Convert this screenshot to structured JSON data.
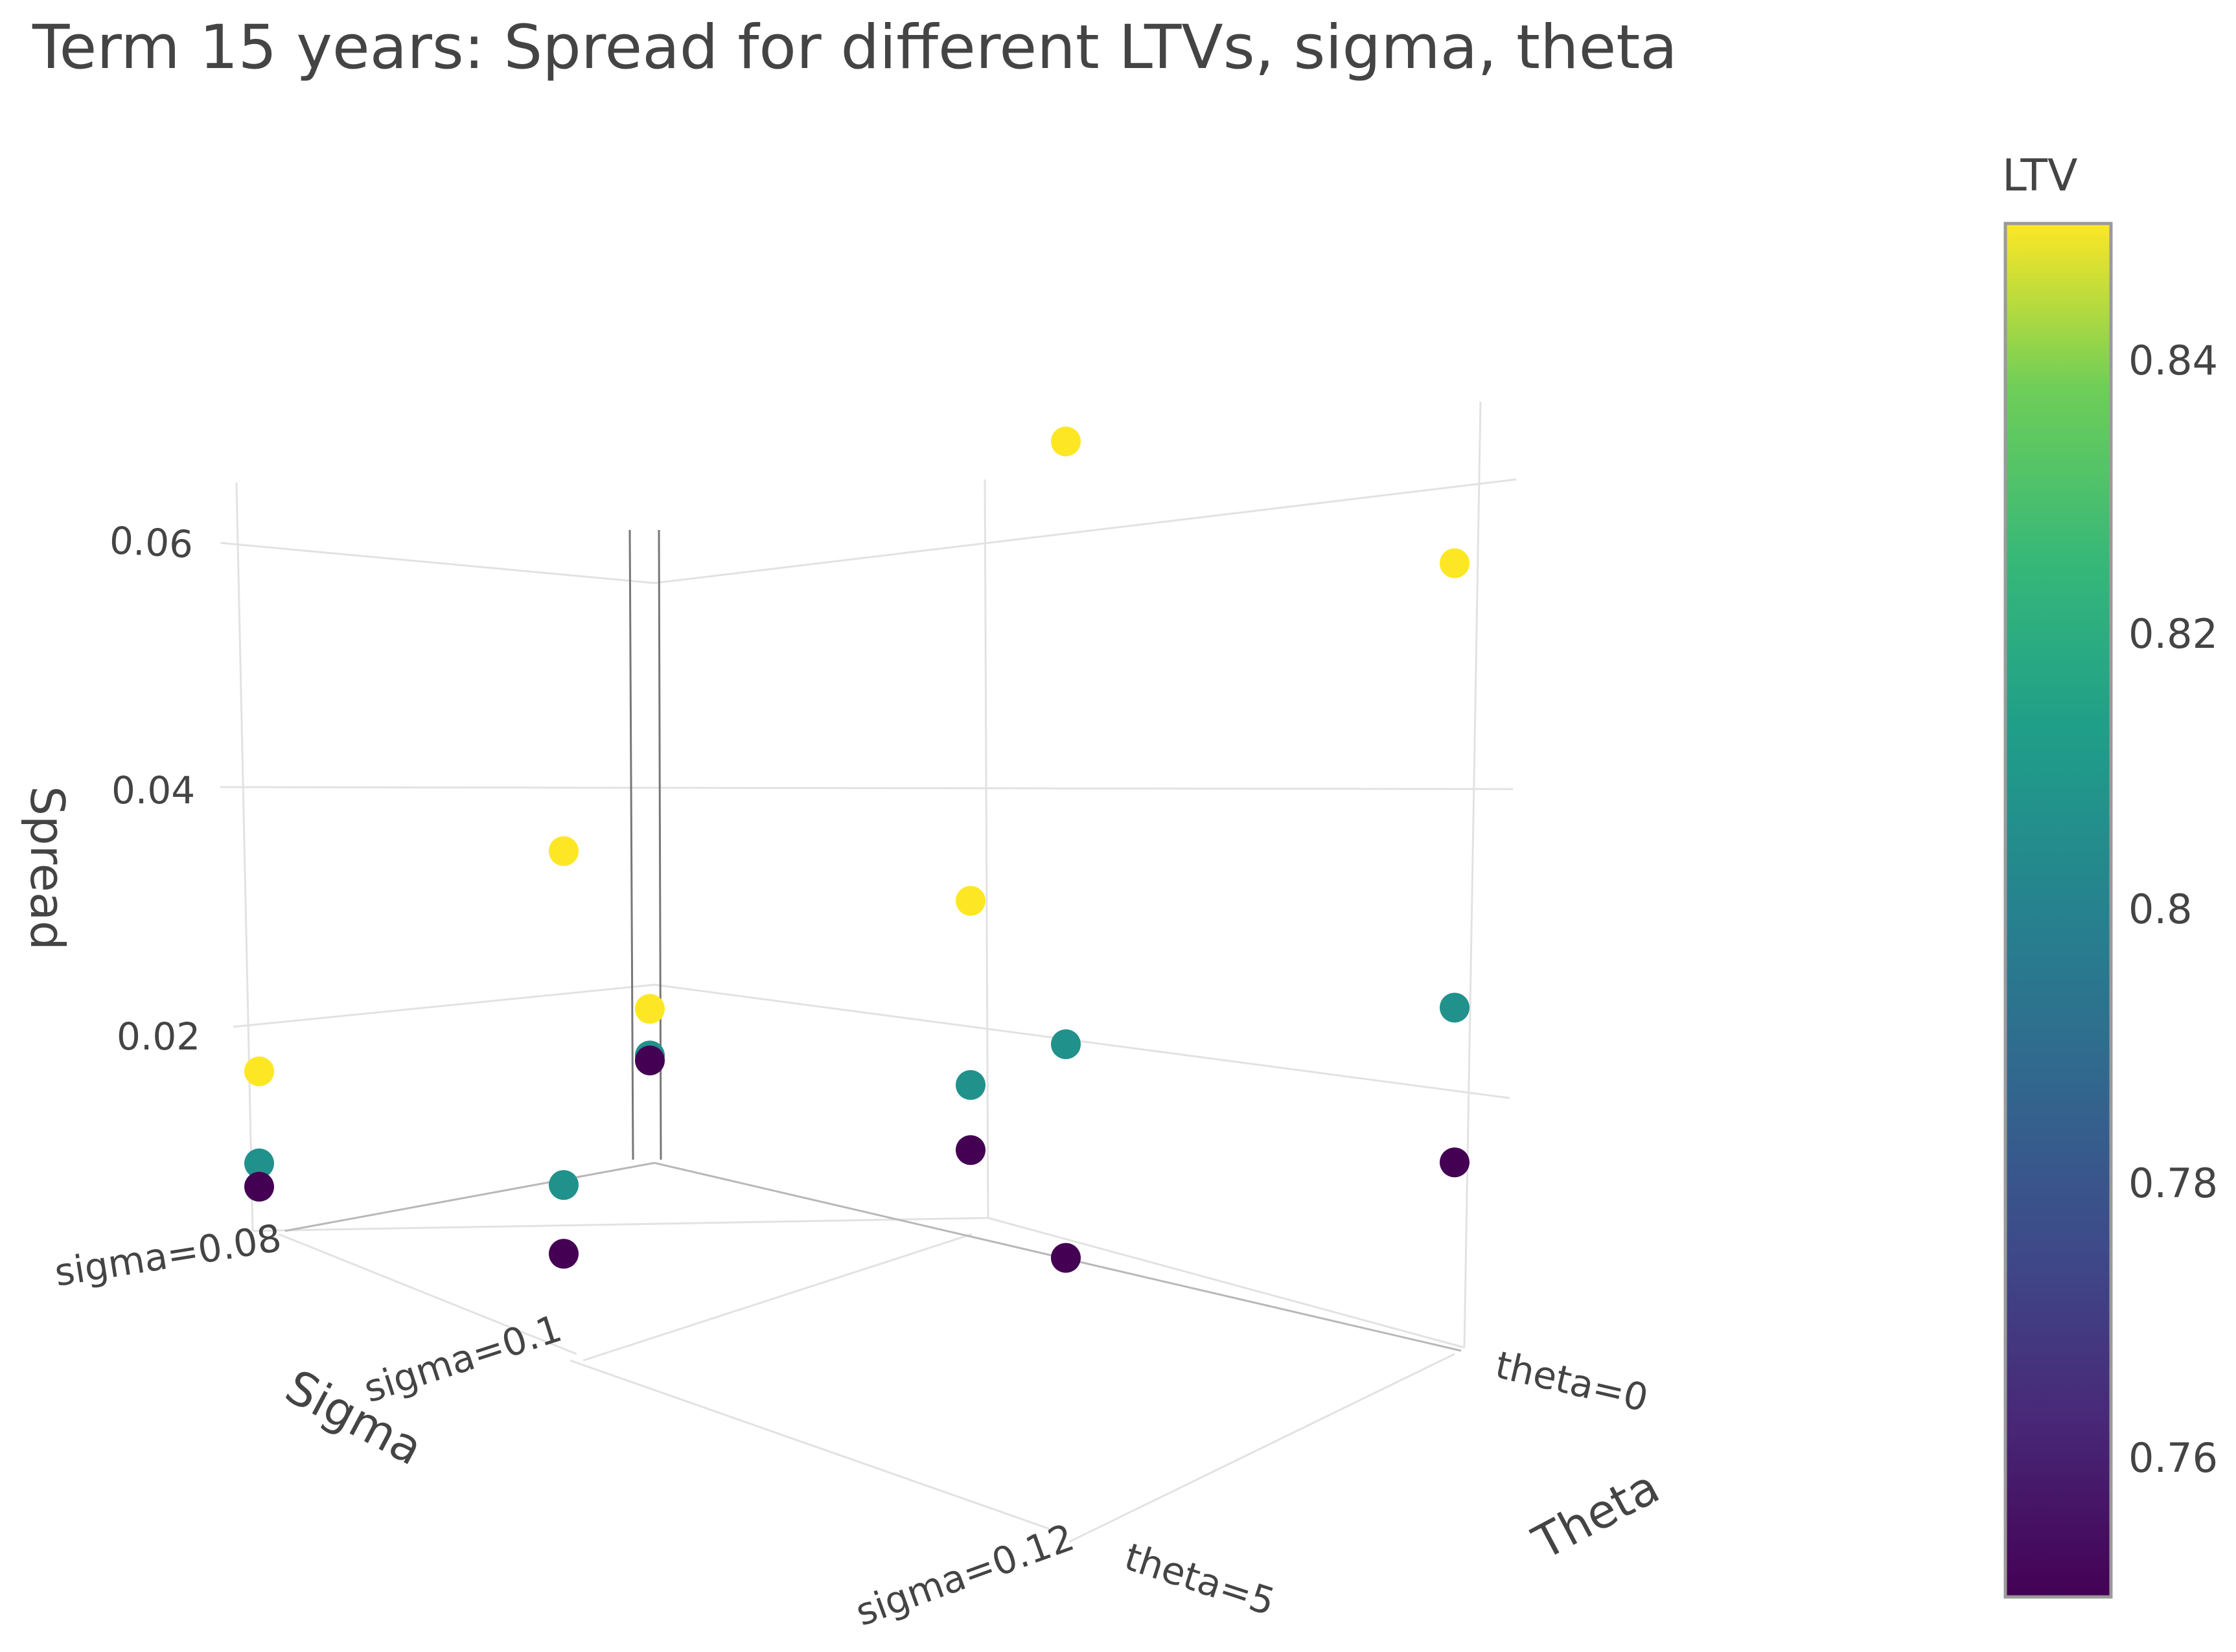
{
  "chart_data": {
    "type": "scatter3d",
    "title": "Term 15 years: Spread for different LTVs, sigma, theta",
    "axes": {
      "x": {
        "title": "Sigma",
        "ticks": [
          "sigma=0.08",
          "sigma=0.1",
          "sigma=0.12"
        ]
      },
      "y": {
        "title": "Theta",
        "ticks": [
          "theta=0",
          "theta=5"
        ]
      },
      "z": {
        "title": "Spread",
        "ticks": [
          "0.06",
          "0.04",
          "0.02"
        ],
        "range": [
          0,
          0.065
        ]
      }
    },
    "colorbar": {
      "title": "LTV",
      "ticks": [
        "0.84",
        "0.82",
        "0.8",
        "0.78",
        "0.76"
      ],
      "range": [
        0.75,
        0.85
      ],
      "colorscale": "viridis",
      "colors": {
        "low": "#440154",
        "mid": "#21918c",
        "high": "#fde725"
      }
    },
    "points": [
      {
        "sigma": 0.08,
        "theta": 5,
        "ltv": 0.85,
        "spread": 0.013
      },
      {
        "sigma": 0.08,
        "theta": 5,
        "ltv": 0.8,
        "spread": 0.0055
      },
      {
        "sigma": 0.08,
        "theta": 5,
        "ltv": 0.75,
        "spread": 0.0036
      },
      {
        "sigma": 0.1,
        "theta": 5,
        "ltv": 0.85,
        "spread": 0.034
      },
      {
        "sigma": 0.1,
        "theta": 5,
        "ltv": 0.8,
        "spread": 0.0068
      },
      {
        "sigma": 0.1,
        "theta": 5,
        "ltv": 0.75,
        "spread": 0.0012
      },
      {
        "sigma": 0.12,
        "theta": 5,
        "ltv": 0.85,
        "spread": 0.069
      },
      {
        "sigma": 0.12,
        "theta": 5,
        "ltv": 0.8,
        "spread": 0.0199
      },
      {
        "sigma": 0.12,
        "theta": 5,
        "ltv": 0.75,
        "spread": 0.0025
      },
      {
        "sigma": 0.08,
        "theta": 0,
        "ltv": 0.85,
        "spread": 0.0127
      },
      {
        "sigma": 0.08,
        "theta": 0,
        "ltv": 0.8,
        "spread": 0.0089
      },
      {
        "sigma": 0.08,
        "theta": 0,
        "ltv": 0.75,
        "spread": 0.0085
      },
      {
        "sigma": 0.1,
        "theta": 0,
        "ltv": 0.85,
        "spread": 0.0262
      },
      {
        "sigma": 0.1,
        "theta": 0,
        "ltv": 0.8,
        "spread": 0.0112
      },
      {
        "sigma": 0.1,
        "theta": 0,
        "ltv": 0.75,
        "spread": 0.0059
      },
      {
        "sigma": 0.12,
        "theta": 0,
        "ltv": 0.85,
        "spread": 0.0547
      },
      {
        "sigma": 0.12,
        "theta": 0,
        "ltv": 0.8,
        "spread": 0.0185
      },
      {
        "sigma": 0.12,
        "theta": 0,
        "ltv": 0.75,
        "spread": 0.0059
      }
    ]
  }
}
